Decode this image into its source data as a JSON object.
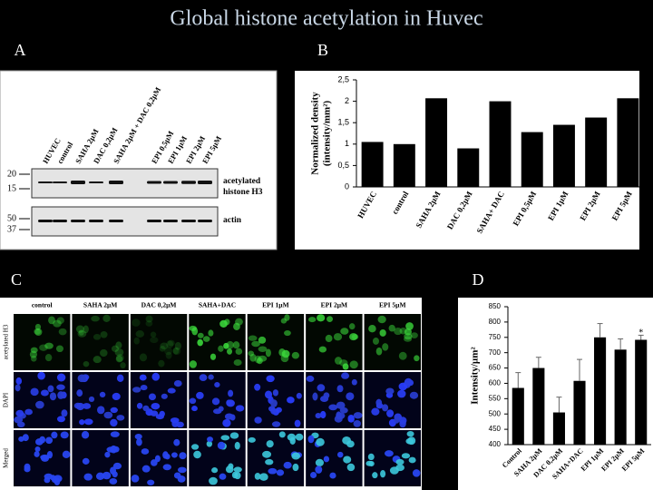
{
  "title": "Global histone acetylation in Huvec",
  "panel_labels": [
    "A",
    "B",
    "C",
    "D"
  ],
  "blot": {
    "lanes": [
      "HUVEC",
      "control",
      "SAHA 2µM",
      "DAC 0,2µM",
      "SAHA 2µM + DAC 0,2µM",
      "EPI 0,5µM",
      "EPI 1µM",
      "EPI 2µM",
      "EPI 5µM"
    ],
    "markers": [
      20,
      15,
      50,
      37
    ],
    "band_labels": [
      "acetylated",
      "histone H3",
      "actin"
    ]
  },
  "micrographs": {
    "columns": [
      "control",
      "SAHA 2µM",
      "DAC 0,2µM",
      "SAHA+DAC",
      "EPI 1µM",
      "EPI 2µM",
      "EPI 5µM"
    ],
    "rows": [
      "acetylated H3",
      "DAPI",
      "Merged"
    ]
  },
  "chart_data": [
    {
      "type": "bar",
      "y_label": [
        "Normalized density",
        "(intensity/mm²)"
      ],
      "categories": [
        "HUVEC",
        "control",
        "SAHA 2µM",
        "DAC 0,2µM",
        "SAHA+ DAC",
        "EPI 0,5µM",
        "EPI 1µM",
        "EPI 2µM",
        "EPI 5µM"
      ],
      "values": [
        1.05,
        1.0,
        2.07,
        0.9,
        2.0,
        1.28,
        1.45,
        1.62,
        2.07
      ],
      "color": "#000000",
      "ylim": [
        0,
        2.5
      ],
      "yticks": [
        0,
        {
          "value": 0.5,
          "label": "0,5"
        },
        1,
        {
          "value": 1.5,
          "label": "1,5"
        },
        2,
        {
          "value": 2.5,
          "label": "2,5"
        }
      ]
    },
    {
      "type": "bar",
      "y_label": [
        "Intensity/µm²"
      ],
      "categories": [
        "Control",
        "SAHA 2µM",
        "DAC 0,2µM",
        "SAHA+DAC",
        "EPI 1µM",
        "EPI 2µM",
        "EPI 5µM"
      ],
      "values": [
        585,
        650,
        505,
        608,
        750,
        710,
        742
      ],
      "errors": [
        50,
        35,
        50,
        70,
        45,
        35,
        15
      ],
      "significance": [
        null,
        null,
        null,
        null,
        null,
        null,
        "*"
      ],
      "color": "#000000",
      "ylim": [
        400,
        850
      ],
      "yticks": [
        400,
        450,
        500,
        550,
        600,
        650,
        700,
        750,
        800,
        850
      ]
    }
  ]
}
